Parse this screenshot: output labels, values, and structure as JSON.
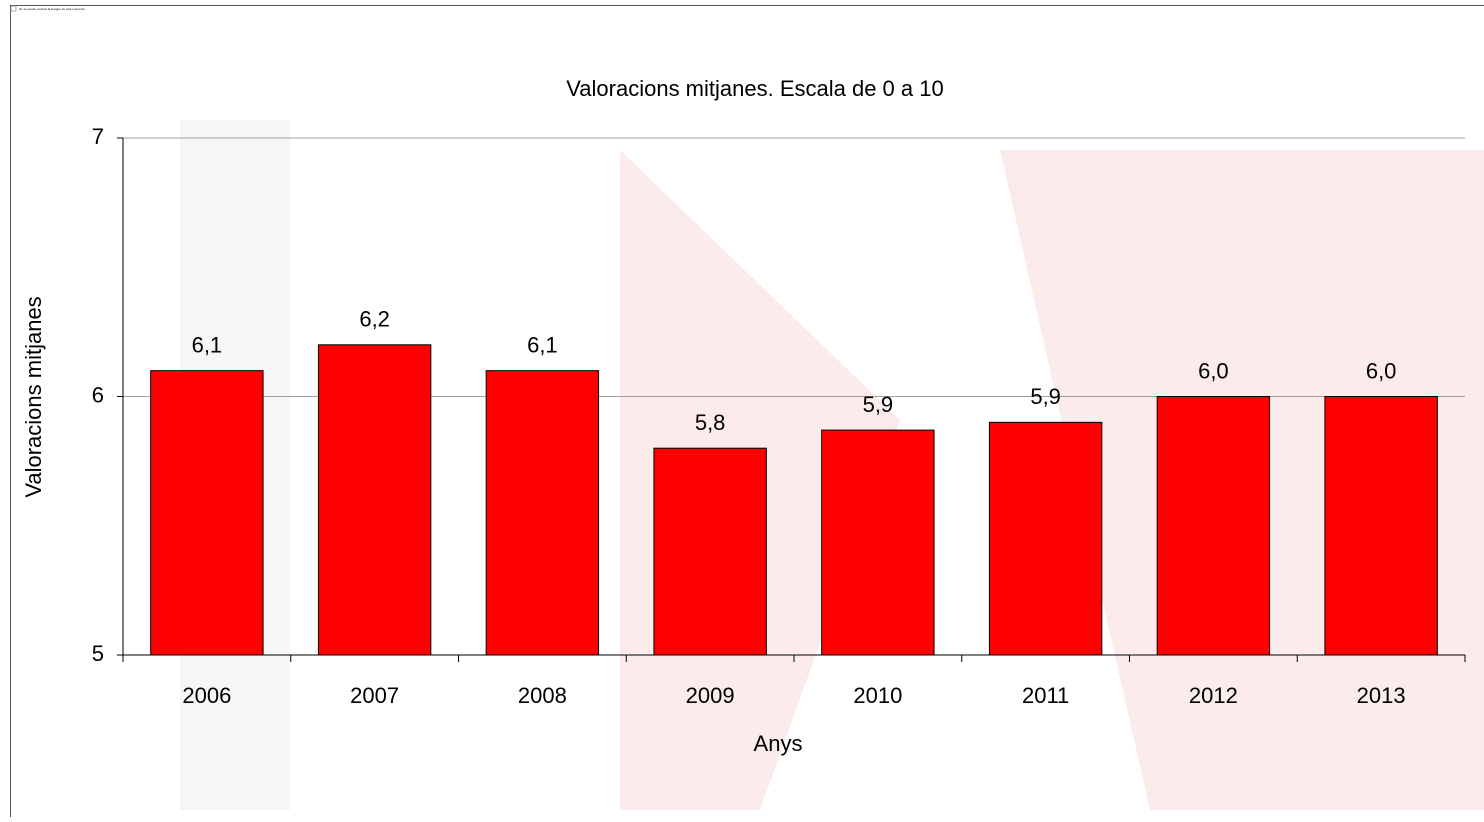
{
  "image_placeholder": "No se puede mostrar la imagen en este momento.",
  "chart_data": {
    "type": "bar",
    "title": "Valoracions mitjanes. Escala de 0 a 10",
    "xlabel": "Anys",
    "ylabel": "Valoracions mitjanes",
    "categories": [
      "2006",
      "2007",
      "2008",
      "2009",
      "2010",
      "2011",
      "2012",
      "2013"
    ],
    "values": [
      6.1,
      6.2,
      6.1,
      5.8,
      5.87,
      5.9,
      6.0,
      6.0
    ],
    "value_labels": [
      "6,1",
      "6,2",
      "6,1",
      "5,8",
      "5,9",
      "5,9",
      "6,0",
      "6,0"
    ],
    "color": "#ff0000",
    "ylim": [
      5,
      7
    ],
    "yticks": [
      5,
      6,
      7
    ],
    "grid": true
  }
}
